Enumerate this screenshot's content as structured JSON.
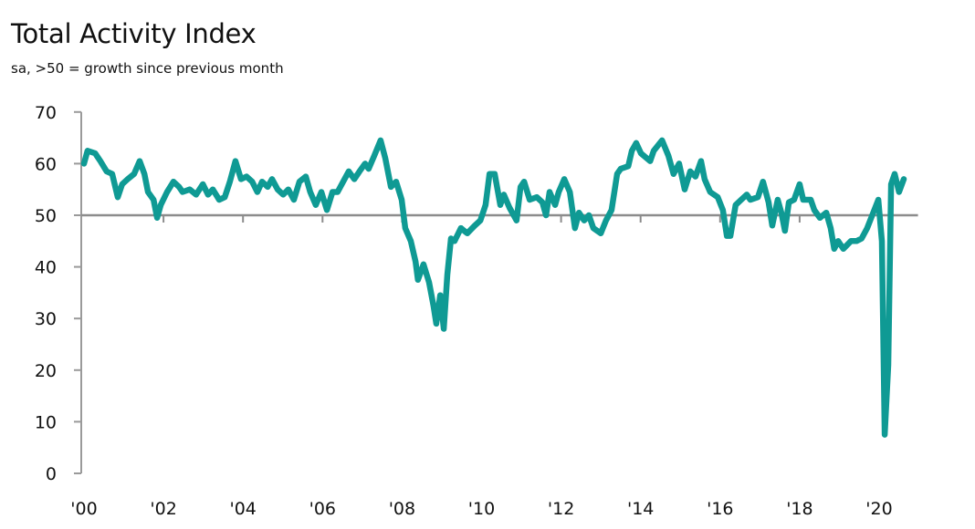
{
  "chart_data": {
    "type": "line",
    "title": "Total Activity Index",
    "subtitle": "sa, >50 = growth since previous month",
    "xlabel": "",
    "ylabel": "",
    "ylim": [
      0,
      70
    ],
    "xlim": [
      2000,
      2021
    ],
    "yticks": [
      "0",
      "10",
      "20",
      "30",
      "40",
      "50",
      "60",
      "70"
    ],
    "xticks": [
      {
        "x": 2000,
        "label": "'00"
      },
      {
        "x": 2002,
        "label": "'02"
      },
      {
        "x": 2004,
        "label": "'04"
      },
      {
        "x": 2006,
        "label": "'06"
      },
      {
        "x": 2008,
        "label": "'08"
      },
      {
        "x": 2010,
        "label": "'10"
      },
      {
        "x": 2012,
        "label": "'12"
      },
      {
        "x": 2014,
        "label": "'14"
      },
      {
        "x": 2016,
        "label": "'16"
      },
      {
        "x": 2018,
        "label": "'18"
      },
      {
        "x": 2020,
        "label": "'20"
      }
    ],
    "reference_line": 50,
    "grid": false,
    "series": [
      {
        "name": "Total Activity Index",
        "color": "#0f9a94",
        "points": [
          [
            2000.0,
            60
          ],
          [
            2000.09,
            62.5
          ],
          [
            2000.28,
            62
          ],
          [
            2000.41,
            60.5
          ],
          [
            2000.57,
            58.5
          ],
          [
            2000.71,
            58
          ],
          [
            2000.85,
            53.5
          ],
          [
            2000.96,
            56
          ],
          [
            2001.1,
            57
          ],
          [
            2001.26,
            58
          ],
          [
            2001.4,
            60.5
          ],
          [
            2001.52,
            58
          ],
          [
            2001.61,
            54.5
          ],
          [
            2001.75,
            53
          ],
          [
            2001.84,
            49.5
          ],
          [
            2001.93,
            52
          ],
          [
            2002.09,
            54.5
          ],
          [
            2002.25,
            56.5
          ],
          [
            2002.39,
            55.5
          ],
          [
            2002.48,
            54.5
          ],
          [
            2002.66,
            55
          ],
          [
            2002.82,
            54
          ],
          [
            2002.99,
            56
          ],
          [
            2003.12,
            54
          ],
          [
            2003.24,
            55
          ],
          [
            2003.4,
            53
          ],
          [
            2003.54,
            53.5
          ],
          [
            2003.67,
            56.5
          ],
          [
            2003.81,
            60.5
          ],
          [
            2003.95,
            57
          ],
          [
            2004.09,
            57.5
          ],
          [
            2004.23,
            56.5
          ],
          [
            2004.36,
            54.5
          ],
          [
            2004.48,
            56.5
          ],
          [
            2004.62,
            55.5
          ],
          [
            2004.73,
            57
          ],
          [
            2004.87,
            55
          ],
          [
            2005.01,
            54
          ],
          [
            2005.14,
            55
          ],
          [
            2005.28,
            53
          ],
          [
            2005.42,
            56.5
          ],
          [
            2005.58,
            57.5
          ],
          [
            2005.69,
            54.5
          ],
          [
            2005.83,
            52
          ],
          [
            2005.97,
            54.5
          ],
          [
            2006.11,
            51
          ],
          [
            2006.25,
            54.5
          ],
          [
            2006.38,
            54.5
          ],
          [
            2006.52,
            56.5
          ],
          [
            2006.66,
            58.5
          ],
          [
            2006.8,
            57
          ],
          [
            2006.93,
            58.5
          ],
          [
            2007.07,
            60
          ],
          [
            2007.16,
            59
          ],
          [
            2007.3,
            61.5
          ],
          [
            2007.46,
            64.5
          ],
          [
            2007.58,
            61
          ],
          [
            2007.72,
            55.5
          ],
          [
            2007.85,
            56.5
          ],
          [
            2007.99,
            53
          ],
          [
            2008.08,
            47.5
          ],
          [
            2008.22,
            45
          ],
          [
            2008.34,
            41
          ],
          [
            2008.4,
            37.5
          ],
          [
            2008.54,
            40.5
          ],
          [
            2008.68,
            37
          ],
          [
            2008.79,
            32.5
          ],
          [
            2008.86,
            29
          ],
          [
            2008.96,
            34.5
          ],
          [
            2009.05,
            28
          ],
          [
            2009.14,
            38.5
          ],
          [
            2009.23,
            45.5
          ],
          [
            2009.32,
            45
          ],
          [
            2009.48,
            47.5
          ],
          [
            2009.64,
            46.5
          ],
          [
            2009.83,
            48
          ],
          [
            2009.97,
            49
          ],
          [
            2010.1,
            52
          ],
          [
            2010.2,
            58
          ],
          [
            2010.33,
            58
          ],
          [
            2010.47,
            52
          ],
          [
            2010.56,
            54
          ],
          [
            2010.7,
            51.5
          ],
          [
            2010.88,
            49
          ],
          [
            2010.98,
            55.5
          ],
          [
            2011.07,
            56.5
          ],
          [
            2011.21,
            53
          ],
          [
            2011.39,
            53.5
          ],
          [
            2011.53,
            52.5
          ],
          [
            2011.62,
            50
          ],
          [
            2011.71,
            54.5
          ],
          [
            2011.85,
            52
          ],
          [
            2011.94,
            54.5
          ],
          [
            2012.08,
            57
          ],
          [
            2012.22,
            54.5
          ],
          [
            2012.35,
            47.5
          ],
          [
            2012.45,
            50.5
          ],
          [
            2012.58,
            49
          ],
          [
            2012.7,
            50
          ],
          [
            2012.81,
            47.5
          ],
          [
            2013.0,
            46.5
          ],
          [
            2013.13,
            49
          ],
          [
            2013.27,
            51
          ],
          [
            2013.41,
            58
          ],
          [
            2013.5,
            59
          ],
          [
            2013.69,
            59.5
          ],
          [
            2013.78,
            62.5
          ],
          [
            2013.89,
            64
          ],
          [
            2014.01,
            62
          ],
          [
            2014.24,
            60.5
          ],
          [
            2014.33,
            62.5
          ],
          [
            2014.54,
            64.5
          ],
          [
            2014.7,
            61.5
          ],
          [
            2014.83,
            58
          ],
          [
            2014.97,
            60
          ],
          [
            2015.11,
            55
          ],
          [
            2015.25,
            58.5
          ],
          [
            2015.38,
            57.5
          ],
          [
            2015.52,
            60.5
          ],
          [
            2015.61,
            57
          ],
          [
            2015.75,
            54.5
          ],
          [
            2015.94,
            53.5
          ],
          [
            2016.07,
            51
          ],
          [
            2016.17,
            46
          ],
          [
            2016.26,
            46
          ],
          [
            2016.39,
            52
          ],
          [
            2016.53,
            53
          ],
          [
            2016.67,
            54
          ],
          [
            2016.76,
            53
          ],
          [
            2016.95,
            53.5
          ],
          [
            2017.08,
            56.5
          ],
          [
            2017.22,
            52.5
          ],
          [
            2017.31,
            48
          ],
          [
            2017.45,
            53
          ],
          [
            2017.54,
            50.5
          ],
          [
            2017.63,
            47
          ],
          [
            2017.73,
            52.5
          ],
          [
            2017.86,
            53
          ],
          [
            2018.0,
            56
          ],
          [
            2018.09,
            53
          ],
          [
            2018.28,
            53
          ],
          [
            2018.37,
            51
          ],
          [
            2018.51,
            49.5
          ],
          [
            2018.67,
            50.5
          ],
          [
            2018.78,
            47.5
          ],
          [
            2018.87,
            43.5
          ],
          [
            2018.97,
            45
          ],
          [
            2019.1,
            43.5
          ],
          [
            2019.29,
            45
          ],
          [
            2019.43,
            45
          ],
          [
            2019.56,
            45.5
          ],
          [
            2019.7,
            47.5
          ],
          [
            2019.98,
            53
          ],
          [
            2020.07,
            45
          ],
          [
            2020.14,
            7.5
          ],
          [
            2020.23,
            21
          ],
          [
            2020.3,
            56
          ],
          [
            2020.39,
            58
          ],
          [
            2020.5,
            54.5
          ],
          [
            2020.62,
            57
          ]
        ]
      }
    ]
  }
}
